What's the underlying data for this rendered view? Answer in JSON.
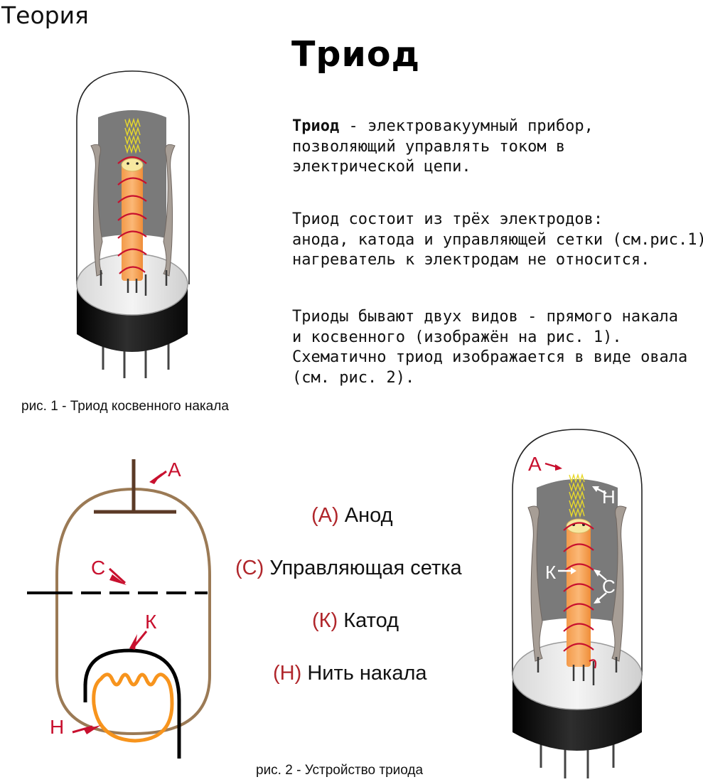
{
  "section_label": "Теория",
  "title": "Триод",
  "paragraphs": {
    "definition": {
      "term": "Триод",
      "rest_line1": " - электровакуумный прибор,",
      "line2": "позволяющий управлять током в",
      "line3": "электрической цепи."
    },
    "composition": [
      "Триод состоит из трёх электродов:",
      "анода, катода и управляющей сетки (см.рис.1),",
      "нагреватель к электродам не относится."
    ],
    "types": [
      "Триоды бывают двух видов - прямого накала",
      "и косвенного (изображён на рис. 1).",
      "Схематично триод изображается в виде овала",
      "(см. рис. 2)."
    ]
  },
  "figure1_caption": "рис. 1 - Триод косвенного накала",
  "figure2_caption": "рис. 2 - Устройство триода",
  "legend": [
    {
      "code": "(А)",
      "label": "Анод"
    },
    {
      "code": "(С)",
      "label": "Управляющая сетка"
    },
    {
      "code": "(К)",
      "label": "Катод"
    },
    {
      "code": "(Н)",
      "label": "Нить накала"
    }
  ],
  "schematic_labels": {
    "anode": "А",
    "grid": "С",
    "cathode": "К",
    "heater": "Н"
  },
  "tube_labels": {
    "anode": "А",
    "heater": "Н",
    "cathode": "К",
    "grid": "С"
  },
  "colors": {
    "label_red": "#b0262b",
    "bulb_brown": "#9b7a55",
    "anode_dark": "#5b3a26",
    "heater_orange": "#f7941d",
    "cathode_orange": "#f7a35c",
    "grid_red": "#c8102e",
    "plate_gray": "#a79e96",
    "base_black": "#1c1c1c"
  }
}
